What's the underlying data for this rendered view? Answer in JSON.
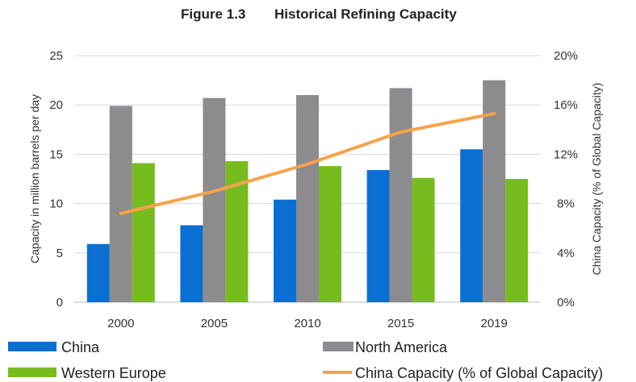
{
  "figure": {
    "number": "Figure 1.3",
    "title": "Historical Refining Capacity"
  },
  "chart_data": {
    "type": "bar",
    "title": "Historical Refining Capacity",
    "categories": [
      "2000",
      "2005",
      "2010",
      "2015",
      "2019"
    ],
    "series": [
      {
        "name": "China",
        "kind": "bar",
        "axis": "left",
        "color": "#0a6fd1",
        "values": [
          5.9,
          7.8,
          10.4,
          13.4,
          15.5
        ]
      },
      {
        "name": "North America",
        "kind": "bar",
        "axis": "left",
        "color": "#8c8b8d",
        "values": [
          19.9,
          20.7,
          21.0,
          21.7,
          22.5
        ]
      },
      {
        "name": "Western Europe",
        "kind": "bar",
        "axis": "left",
        "color": "#77bc1f",
        "values": [
          14.1,
          14.3,
          13.8,
          12.6,
          12.5
        ]
      },
      {
        "name": "China Capacity (% of Global Capacity)",
        "kind": "line",
        "axis": "right",
        "color": "#f7a24a",
        "values": [
          7.2,
          9.0,
          11.2,
          13.8,
          15.3
        ]
      }
    ],
    "ylabel": "Capacity in million barrels per day",
    "ylim": [
      0,
      25
    ],
    "yticks": [
      "0",
      "5",
      "10",
      "15",
      "20",
      "25"
    ],
    "y2label": "China Capacity (% of Global Capacity)",
    "y2lim": [
      0,
      20
    ],
    "y2ticks": [
      "0%",
      "4%",
      "8%",
      "12%",
      "16%",
      "20%"
    ],
    "grid": true,
    "legend_position": "bottom"
  }
}
